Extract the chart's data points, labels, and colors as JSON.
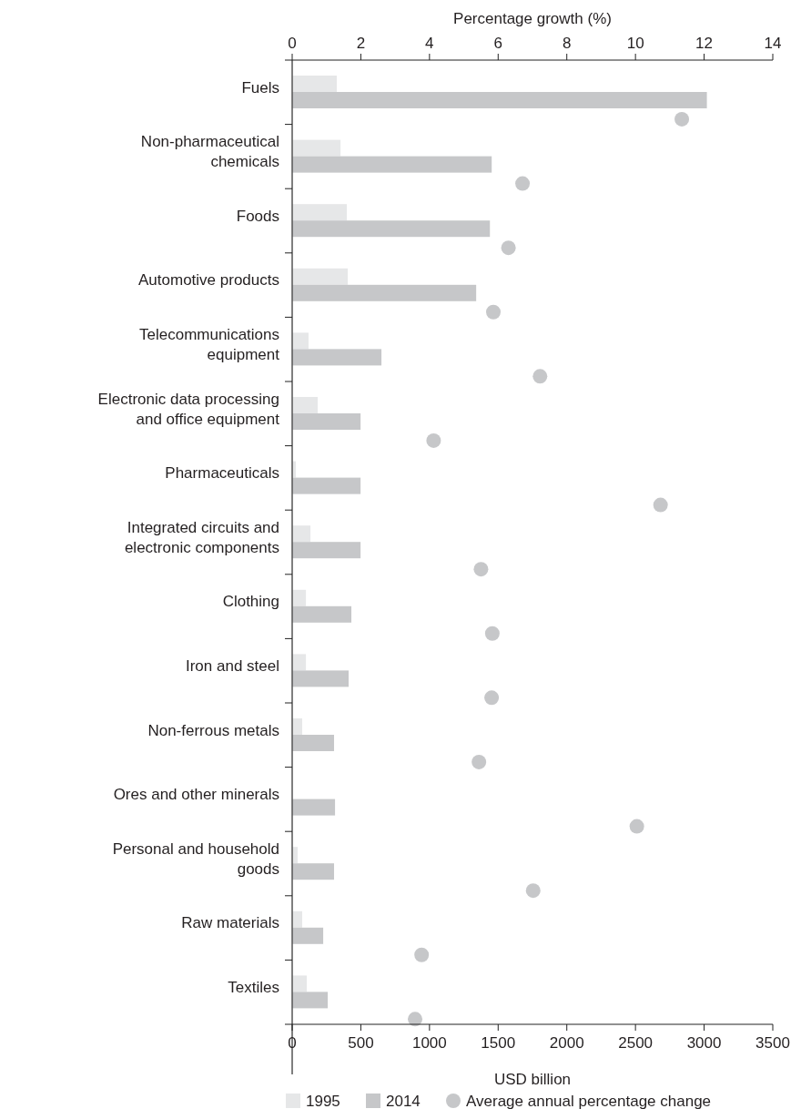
{
  "chart_data": {
    "type": "bar",
    "orientation": "horizontal",
    "xlabel": "USD billion",
    "x2label": "Percentage growth (%)",
    "categories": [
      "Fuels",
      "Non-pharmaceutical chemicals",
      "Foods",
      "Automotive products",
      "Telecommunications equipment",
      "Electronic data processing and office equipment",
      "Pharmaceuticals",
      "Integrated circuits and electronic components",
      "Clothing",
      "Iron and steel",
      "Non-ferrous metals",
      "Ores and other minerals",
      "Personal and household goods",
      "Raw materials",
      "Textiles"
    ],
    "series": [
      {
        "name": "1995",
        "color": "#e6e7e8",
        "values": [
          325,
          352,
          398,
          405,
          119,
          186,
          27,
          133,
          100,
          100,
          73,
          0,
          40,
          73,
          106
        ]
      },
      {
        "name": "2014",
        "color": "#c6c7c9",
        "values": [
          3020,
          1453,
          1440,
          1340,
          650,
          498,
          498,
          498,
          431,
          411,
          305,
          312,
          305,
          226,
          259
        ]
      },
      {
        "name": "Average annual percentage change",
        "type": "scatter",
        "axis": "x2",
        "color": "#c6c7c9",
        "values": [
          11.35,
          6.71,
          6.3,
          5.86,
          7.22,
          4.12,
          10.73,
          5.5,
          5.83,
          5.81,
          5.44,
          10.04,
          7.02,
          3.77,
          3.58
        ]
      }
    ],
    "xlim": [
      0,
      3500
    ],
    "xticks": [
      0,
      500,
      1000,
      1500,
      2000,
      2500,
      3000,
      3500
    ],
    "x2lim": [
      0,
      14
    ],
    "x2ticks": [
      0,
      2,
      4,
      6,
      8,
      10,
      12,
      14
    ],
    "marker": "circle",
    "legend": "bottom",
    "grid": false
  }
}
